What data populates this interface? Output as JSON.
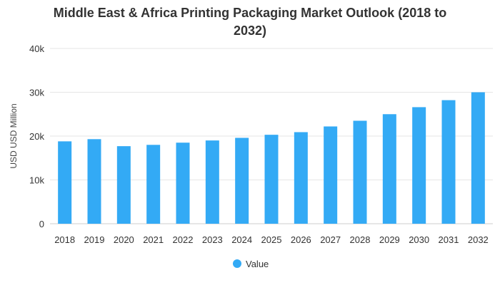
{
  "chart_data": {
    "type": "bar",
    "title_lines": [
      "Middle East & Africa Printing Packaging Market Outlook (2018 to",
      "2032)"
    ],
    "ylabel": "USD USD Million",
    "xlabel": "",
    "categories": [
      "2018",
      "2019",
      "2020",
      "2021",
      "2022",
      "2023",
      "2024",
      "2025",
      "2026",
      "2027",
      "2028",
      "2029",
      "2030",
      "2031",
      "2032"
    ],
    "series": [
      {
        "name": "Value",
        "values": [
          18800,
          19300,
          17700,
          18000,
          18500,
          19000,
          19600,
          20300,
          20900,
          22200,
          23500,
          25000,
          26600,
          28200,
          30000
        ],
        "color": "#33aaf5"
      }
    ],
    "ylim": [
      0,
      40000
    ],
    "yticks": [
      0,
      10000,
      20000,
      30000,
      40000
    ],
    "ytick_labels": [
      "0",
      "10k",
      "20k",
      "30k",
      "40k"
    ],
    "grid": true,
    "legend_position": "bottom"
  }
}
